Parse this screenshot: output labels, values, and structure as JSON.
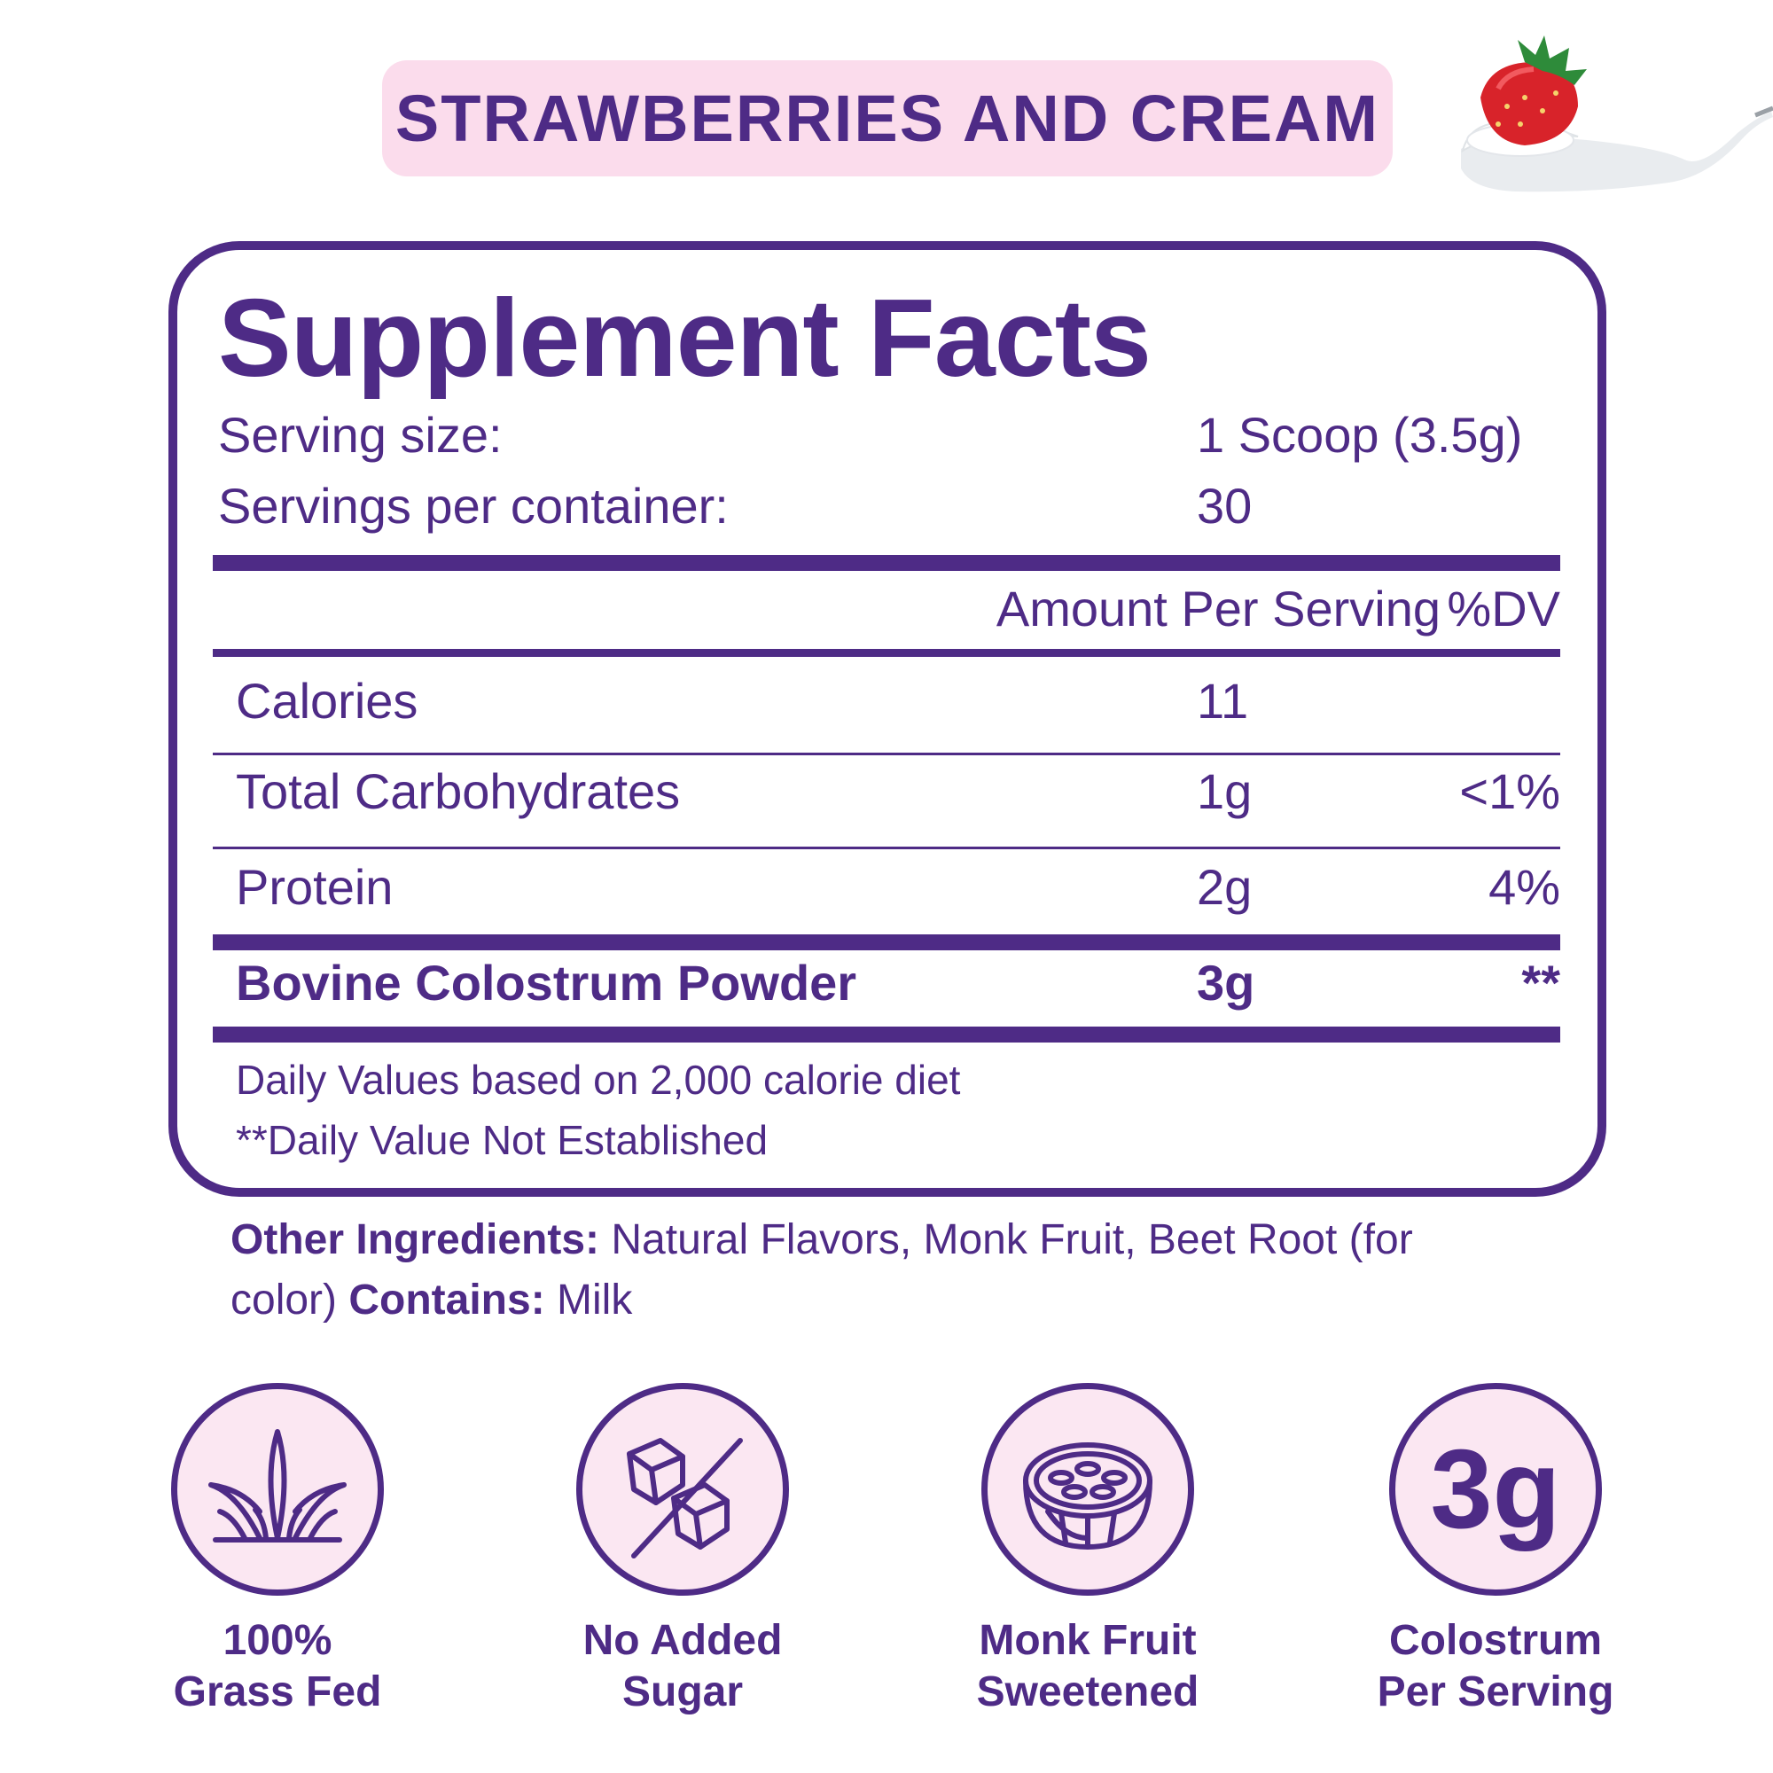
{
  "header": {
    "flavor": "STRAWBERRIES AND CREAM"
  },
  "colors": {
    "primary": "#4e2b86",
    "pill_bg": "#fbdcec",
    "badge_bg": "#fbe7f2"
  },
  "facts": {
    "title": "Supplement Facts",
    "serving_size_label": "Serving size:",
    "serving_size_value": "1 Scoop (3.5g)",
    "servings_label": "Servings per container:",
    "servings_value": "30",
    "col_amount": "Amount Per Serving",
    "col_dv": "%DV",
    "rows": [
      {
        "name": "Calories",
        "amount": "11",
        "dv": ""
      },
      {
        "name": "Total Carbohydrates",
        "amount": "1g",
        "dv": "<1%"
      },
      {
        "name": "Protein",
        "amount": "2g",
        "dv": "4%"
      },
      {
        "name": "Bovine Colostrum Powder",
        "amount": "3g",
        "dv": "**"
      }
    ],
    "footnote_1": "Daily Values based on 2,000 calorie diet",
    "footnote_2": "**Daily Value Not Established"
  },
  "ingredients": {
    "other_label": "Other Ingredients:",
    "other_text": " Natural Flavors, Monk Fruit, Beet Root (for color) ",
    "contains_label": "Contains:",
    "contains_text": " Milk"
  },
  "badges": [
    {
      "icon": "grass-icon",
      "line1": "100%",
      "line2": "Grass Fed"
    },
    {
      "icon": "sugar-cubes-crossed-icon",
      "line1": "No Added",
      "line2": "Sugar"
    },
    {
      "icon": "monk-fruit-icon",
      "line1": "Monk Fruit",
      "line2": "Sweetened"
    },
    {
      "icon_text": "3g",
      "line1": "Colostrum",
      "line2": "Per Serving"
    }
  ]
}
